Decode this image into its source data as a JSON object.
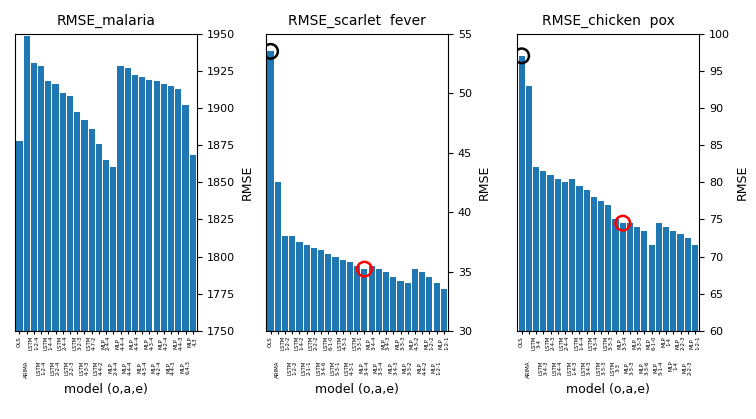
{
  "chart_data": [
    {
      "type": "bar",
      "title": "RMSE_malaria",
      "xlabel": "model (o,a,e)",
      "ylabel": "RMSE",
      "categories": [
        "OLS",
        "ARIMA",
        "LSTM\n1-2-4",
        "LSTM\n1-2-4",
        "LSTM\n1-4-4",
        "LSTM\n2-2-4",
        "LSTM\n2-4-4",
        "LSTM\n2-2-3",
        "LSTM\n3-2-3",
        "LSTM\n4-3-3",
        "LSTM\n4-7-2",
        "LSTM\n4-4-2",
        "MLP\n2-4-4",
        "MLP\n2-4-4",
        "MLP\n4-4-4",
        "MLP\n4-4-4",
        "MLP\n4-4-4",
        "MLP\n4-3-4",
        "MLP\n4-3-4",
        "MLP\n4-2-4",
        "MLP\n4-2-4",
        "MLP\n4-4-3",
        "MLP\n4-4-3",
        "MLP\n6,4,3",
        "MLP\n4,3"
      ],
      "series": [
        {
          "type": "bar",
          "values": [
            1878,
            1948,
            1930,
            1928,
            1918,
            1916,
            1910,
            1908,
            1897,
            1892,
            1886,
            1876,
            1865,
            1860,
            1928,
            1927,
            1922,
            1921,
            1919,
            1918,
            1916,
            1915,
            1913,
            1902,
            1868
          ]
        }
      ],
      "ylim": [
        1750,
        1950
      ],
      "yticks": [
        1750,
        1775,
        1800,
        1825,
        1850,
        1875,
        1900,
        1925,
        1950
      ],
      "grid": false
    },
    {
      "type": "bar",
      "title": "RMSE_scarlet  fever",
      "xlabel": "model (o,a,e)",
      "ylabel": "RMSE",
      "categories": [
        "OLS",
        "ARIMA",
        "LSTM\n1-2-2",
        "LSTM\n1-2-2",
        "LSTM\n1-4-2",
        "LSTM\n2-1-1",
        "LSTM\n2-2-2",
        "LSTM\n3-4-6",
        "LSTM\n6-1-0",
        "LSTM\n5-3-1",
        "LSTM\n4-3-1",
        "LSTM\n4-3-1",
        "LSTM\n3-3-1",
        "MLP\n3-4-4",
        "MLP\n3-4-4",
        "MLP\n3-3-4",
        "MLP\n3-4-3",
        "MLP\n3-4-3",
        "MLP\n3-3-3",
        "MLP\n3-3-2",
        "MLP\n4-3-2",
        "MLP\n4-4-2",
        "MLP\n1-2-2",
        "MLP\n1-2-1",
        "MLP\n1-2-1"
      ],
      "series": [
        {
          "type": "bar",
          "values": [
            53.5,
            42.5,
            38.0,
            38.0,
            37.5,
            37.2,
            37.0,
            36.8,
            36.5,
            36.2,
            36.0,
            35.8,
            35.5,
            35.2,
            35.5,
            35.2,
            35.0,
            34.5,
            34.2,
            34.0,
            35.2,
            35.0,
            34.5,
            34.0,
            33.5
          ]
        },
        {
          "type": "scatter",
          "marker": "o",
          "color": "black",
          "values": [
            53.5,
            null,
            null,
            null,
            null,
            null,
            null,
            null,
            null,
            null,
            null,
            null,
            null,
            null,
            null,
            null,
            null,
            null,
            null,
            null,
            null,
            null,
            null,
            null,
            null
          ]
        },
        {
          "type": "scatter",
          "marker": "o",
          "color": "red",
          "values": [
            null,
            null,
            null,
            null,
            null,
            null,
            null,
            null,
            null,
            null,
            null,
            null,
            null,
            35.2,
            null,
            null,
            null,
            null,
            null,
            null,
            null,
            null,
            null,
            null,
            null
          ]
        }
      ],
      "ylim": [
        30,
        55
      ],
      "yticks": [
        30,
        35,
        40,
        45,
        50,
        55
      ],
      "grid": false
    },
    {
      "type": "bar",
      "title": "RMSE_chicken  pox",
      "xlabel": "model (o,a,e)",
      "ylabel": "RMSE",
      "categories": [
        "OLS",
        "ARIMA",
        "LSTM\n3-4",
        "LSTM\n3-4-3",
        "LSTM\n2-4-3",
        "LSTM\n2-4-4",
        "LSTM\n2-4-4",
        "LSTM\n1-4-3",
        "LSTM\n1-4-4",
        "LSTM\n3-4-3",
        "LSTM\n4-3-4",
        "LSTM\n3-3-3",
        "LSTM\n3-3-3",
        "LSTM\n3-3",
        "MLP\n3-3-4",
        "MLP\n3-3-3",
        "MLP\n3-3-3",
        "MLP\n3-3-6",
        "MLP\n6-1-0",
        "MLP\n5-1-4",
        "MLP\n1-4",
        "MLP\n1-4",
        "MLP\n2-2-3",
        "MLP\n2-2-3",
        "MLP\n1-2-1"
      ],
      "series": [
        {
          "type": "bar",
          "values": [
            97.0,
            93.0,
            82.0,
            81.5,
            81.0,
            80.5,
            80.0,
            80.5,
            79.5,
            79.0,
            78.0,
            77.5,
            77.0,
            75.0,
            74.5,
            74.5,
            74.0,
            73.5,
            71.5,
            74.5,
            74.0,
            73.5,
            73.0,
            72.5,
            71.5
          ]
        },
        {
          "type": "scatter",
          "marker": "o",
          "color": "black",
          "values": [
            97.0,
            null,
            null,
            null,
            null,
            null,
            null,
            null,
            null,
            null,
            null,
            null,
            null,
            null,
            null,
            null,
            null,
            null,
            null,
            null,
            null,
            null,
            null,
            null,
            null
          ]
        },
        {
          "type": "scatter",
          "marker": "o",
          "color": "red",
          "values": [
            null,
            null,
            null,
            null,
            null,
            null,
            null,
            null,
            null,
            null,
            null,
            null,
            null,
            null,
            74.5,
            null,
            null,
            null,
            null,
            null,
            null,
            null,
            null,
            null,
            null
          ]
        }
      ],
      "ylim": [
        60,
        100
      ],
      "yticks": [
        60,
        65,
        70,
        75,
        80,
        85,
        90,
        95,
        100
      ],
      "grid": false
    }
  ]
}
